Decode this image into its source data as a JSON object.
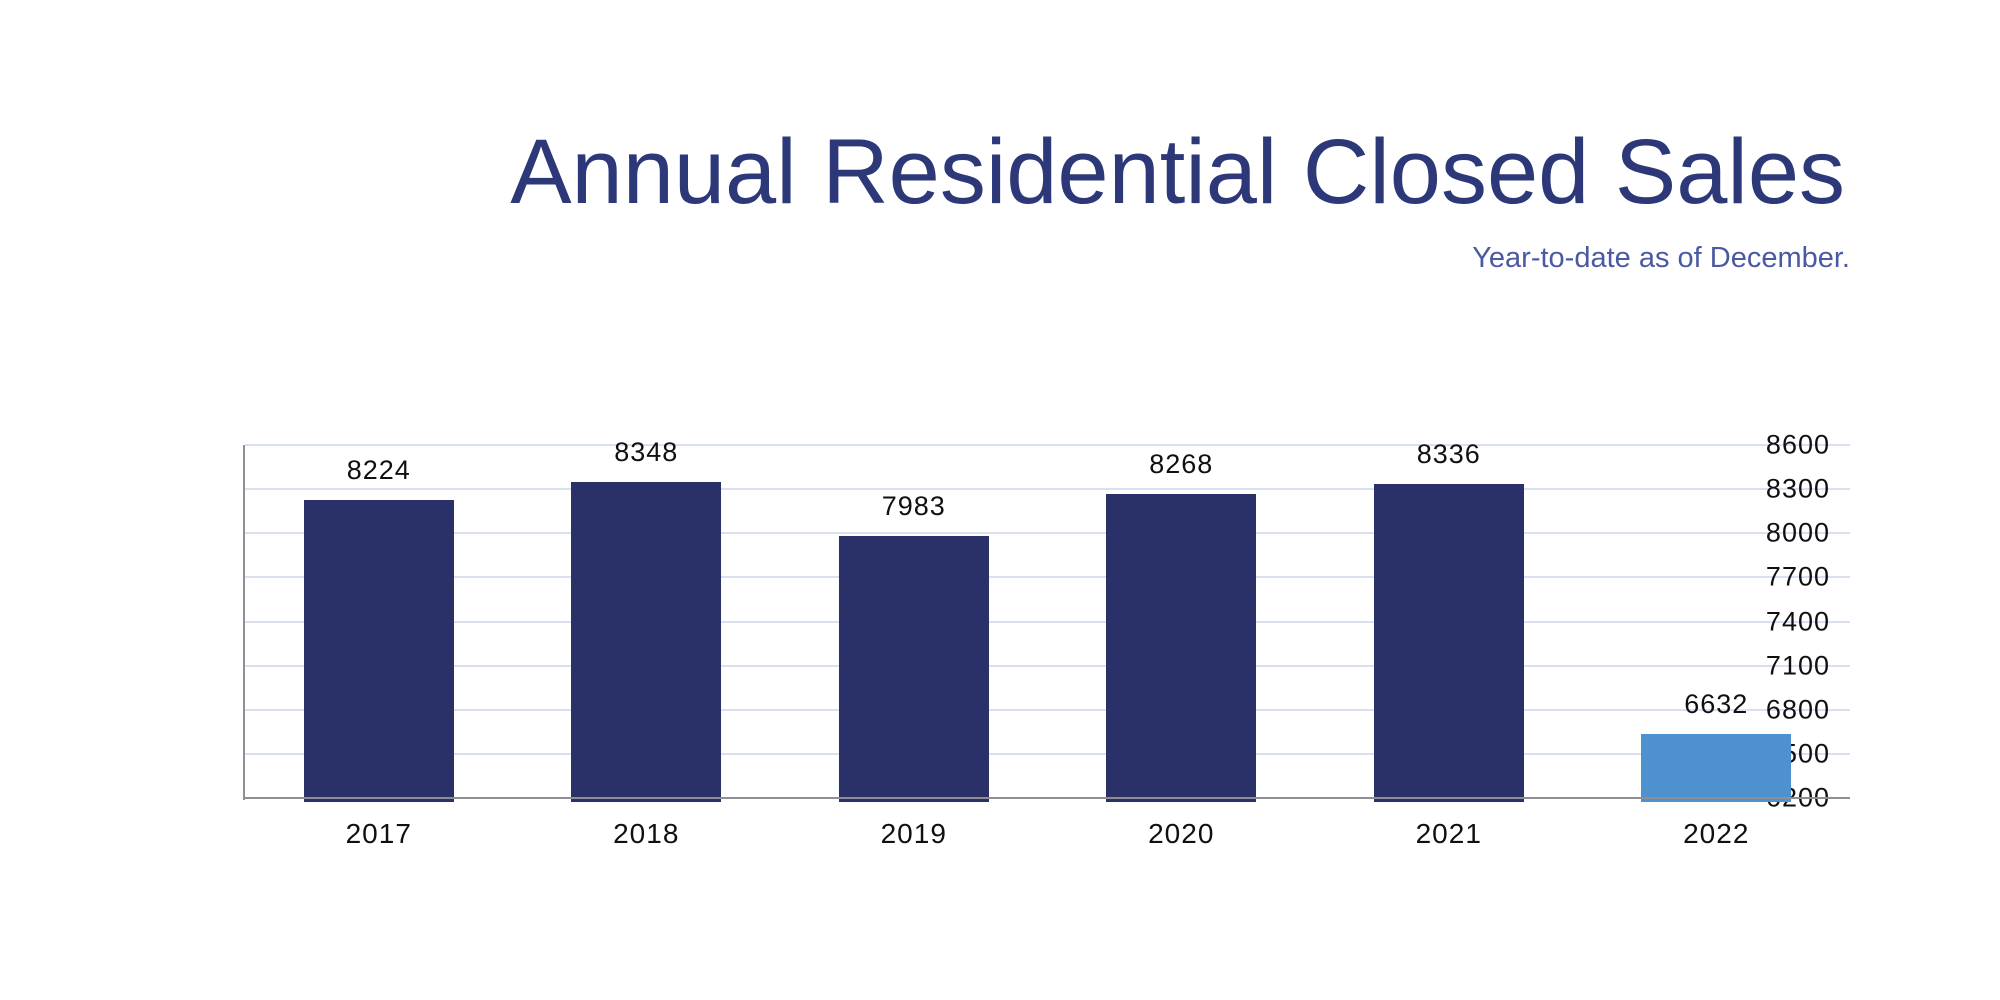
{
  "chart_data": {
    "type": "bar",
    "title": "Annual Residential Closed Sales",
    "subtitle": "Year-to-date as of December.",
    "categories": [
      "2017",
      "2018",
      "2019",
      "2020",
      "2021",
      "2022"
    ],
    "values": [
      8224,
      8348,
      7983,
      8268,
      8336,
      6632
    ],
    "data_labels_shown": true,
    "xlabel": "",
    "ylabel": "",
    "ylim": [
      6200,
      8600
    ],
    "yticks": [
      6200,
      6500,
      6800,
      7100,
      7400,
      7700,
      8000,
      8300,
      8600
    ],
    "grid": "horizontal",
    "legend": "none",
    "highlight_index": 5,
    "colors": {
      "bar_primary": "#2A3168",
      "bar_highlight": "#4D92CE",
      "title_text": "#2C3877",
      "subtitle_text": "#4A59A3",
      "gridline": "#D9E1F0",
      "axis_line": "#8E8E94",
      "tick_text": "#101010",
      "background": "#FFFFFF"
    }
  }
}
